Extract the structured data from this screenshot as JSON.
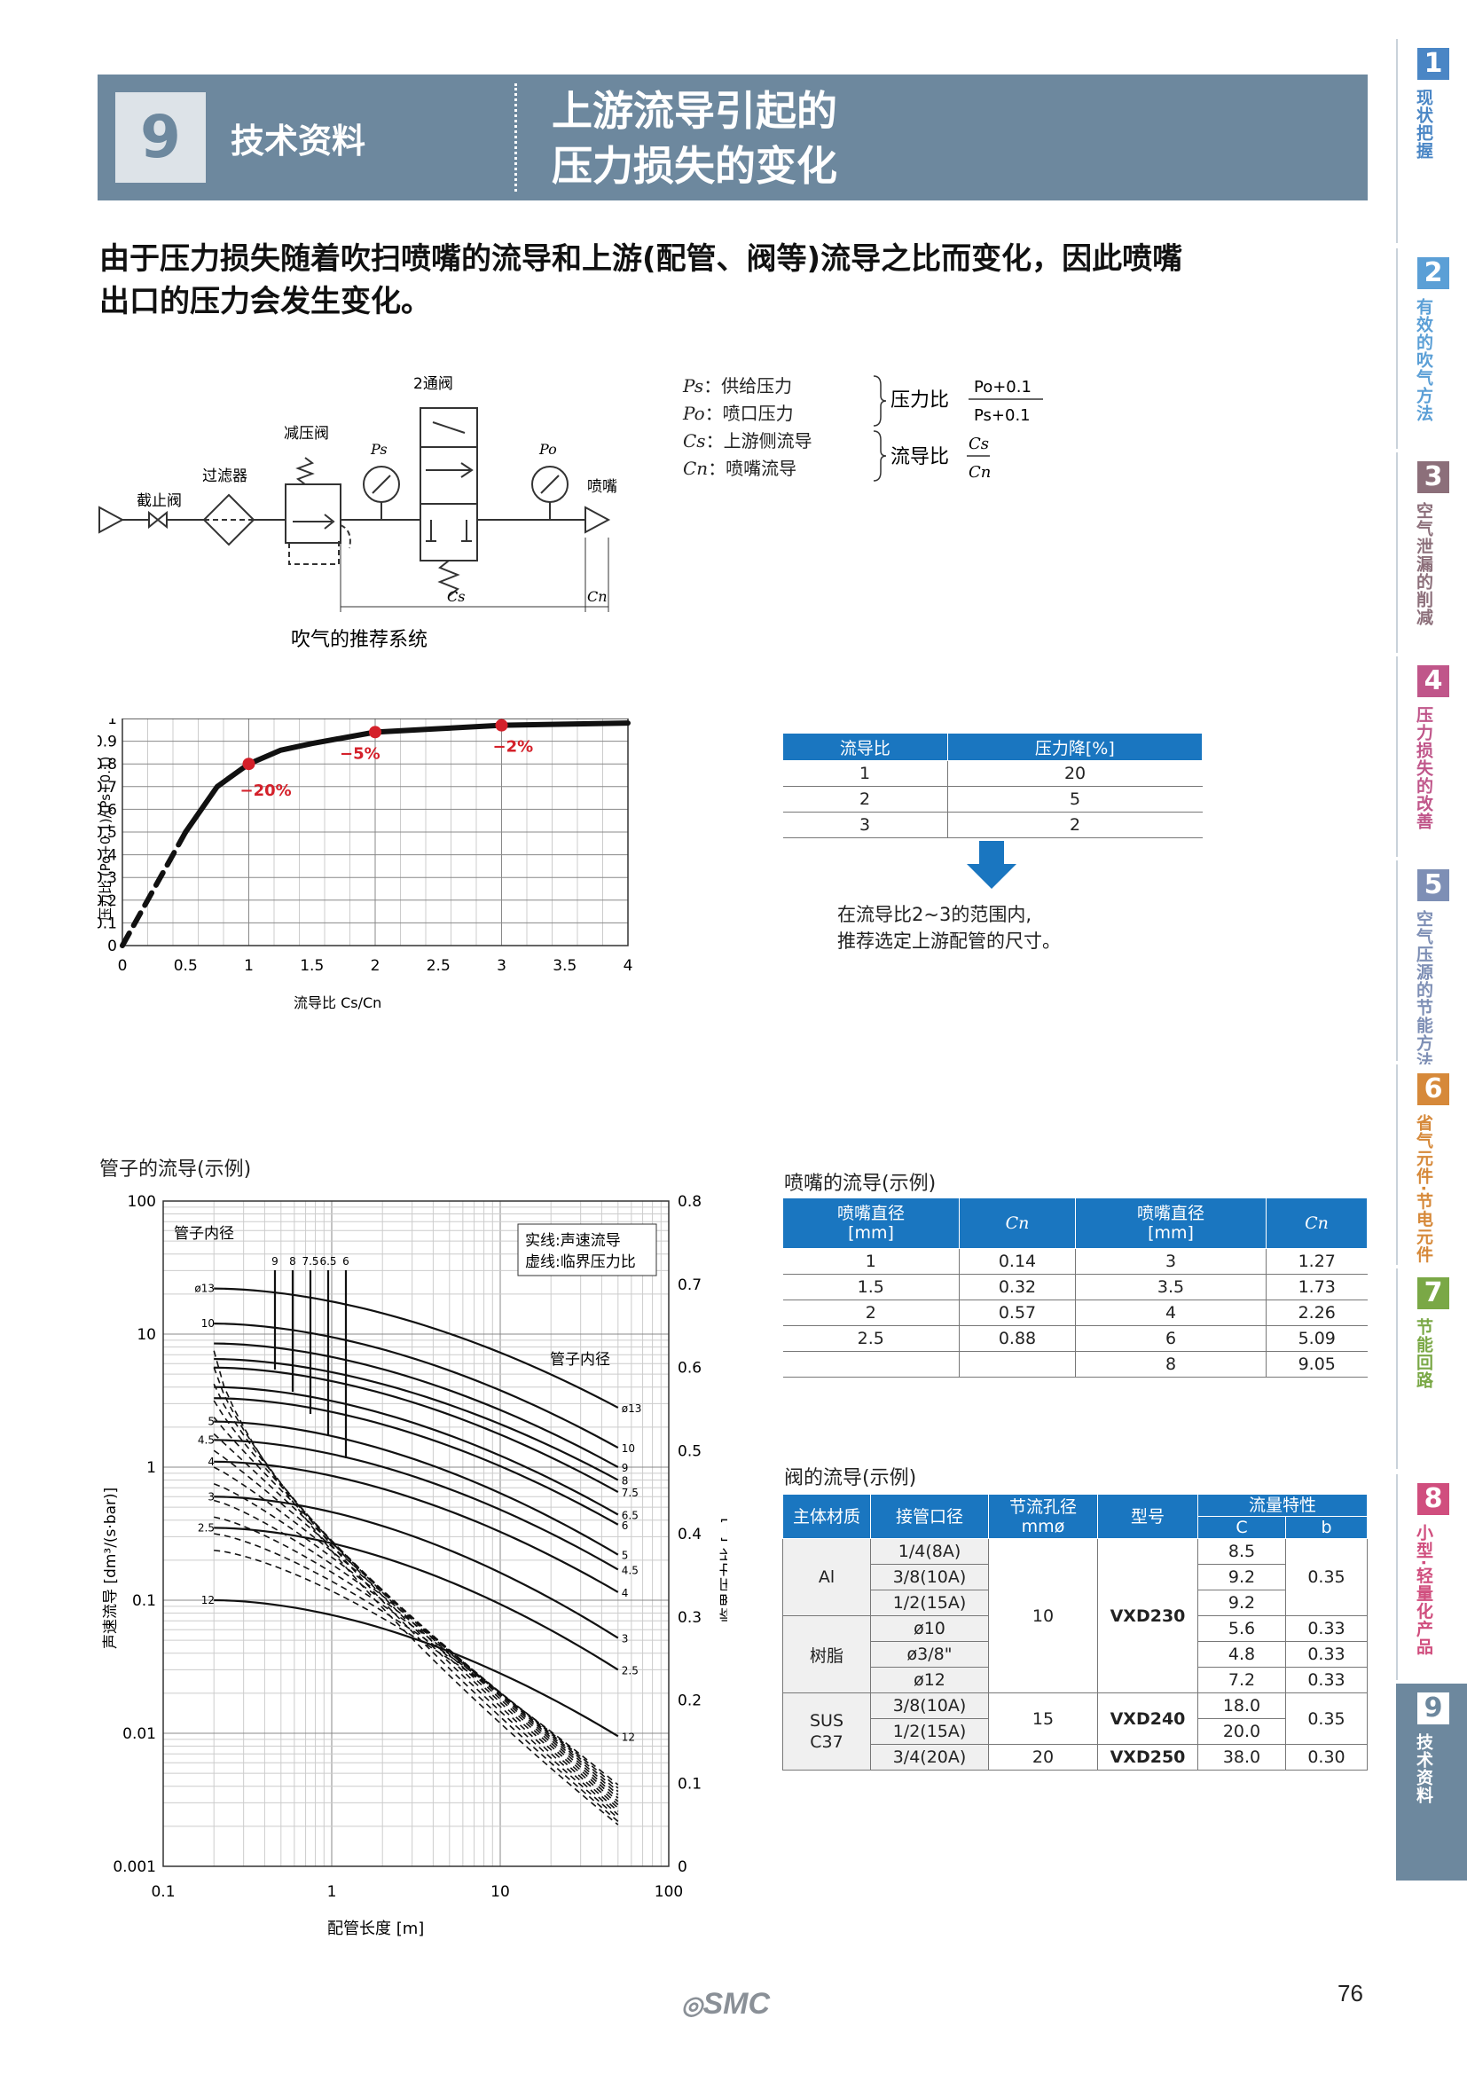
{
  "header": {
    "num": "9",
    "section": "技术资料",
    "title_line1": "上游流导引起的",
    "title_line2": "压力损失的变化"
  },
  "lead": {
    "line1": "由于压力损失随着吹扫喷嘴的流导和上游(配管、阀等)流导之比而变化，因此喷嘴",
    "line2": "出口的压力会发生变化。"
  },
  "tabs": [
    {
      "num": "1",
      "label": "现状把握",
      "color": "#4a86c5"
    },
    {
      "num": "2",
      "label": "有效的吹气方法",
      "color": "#5b9fd6"
    },
    {
      "num": "3",
      "label": "空气泄漏的削减",
      "color": "#8c6f7a"
    },
    {
      "num": "4",
      "label": "压力损失的改善",
      "color": "#c0568a"
    },
    {
      "num": "5",
      "label": "空气压源的节能方法",
      "color": "#7e8fb5"
    },
    {
      "num": "6",
      "label": "省气元件·节电元件",
      "color": "#d6893a"
    },
    {
      "num": "7",
      "label": "节能回路",
      "color": "#7aa846"
    },
    {
      "num": "8",
      "label": "小型·轻量化产品",
      "color": "#d04e7e"
    },
    {
      "num": "9",
      "label": "技术资料",
      "color": "#6d889e"
    }
  ],
  "diagram": {
    "labels": {
      "valve": "2通阀",
      "regulator": "减压阀",
      "filter": "过滤器",
      "stop_valve": "截止阀",
      "nozzle": "喷嘴",
      "ps": "Ps",
      "po": "Po",
      "cs": "Cs",
      "cn": "Cn",
      "caption": "吹气的推荐系统"
    },
    "legend": [
      {
        "sym": "Ps",
        "text": "：供给压力"
      },
      {
        "sym": "Po",
        "text": "：喷口压力"
      },
      {
        "sym": "Cs",
        "text": "：上游侧流导"
      },
      {
        "sym": "Cn",
        "text": "：喷嘴流导"
      }
    ],
    "pressure_ratio": {
      "label": "压力比",
      "num": "Po+0.1",
      "den": "Ps+0.1"
    },
    "conductance_ratio": {
      "label": "流导比",
      "num": "Cs",
      "den": "Cn"
    }
  },
  "chart_data": [
    {
      "type": "line",
      "title": "",
      "xlabel": "流导比 Cs/Cn",
      "ylabel": "压力比 (Po+0.1)/(Ps+0.1)",
      "xlim": [
        0,
        4
      ],
      "ylim": [
        0,
        1
      ],
      "xticks": [
        "0",
        "0.5",
        "1",
        "1.5",
        "2",
        "2.5",
        "3",
        "3.5",
        "4"
      ],
      "yticks": [
        "0",
        "0.1",
        "0.2",
        "0.3",
        "0.4",
        "0.5",
        "0.6",
        "0.7",
        "0.8",
        "0.9",
        "1"
      ],
      "grid": true,
      "series": [
        {
          "style": "dashed",
          "x": [
            0,
            0.5
          ],
          "y": [
            0,
            0.5
          ]
        },
        {
          "style": "solid",
          "x": [
            0.5,
            0.75,
            1,
            1.25,
            1.5,
            2,
            2.5,
            3,
            3.5,
            4
          ],
          "y": [
            0.5,
            0.7,
            0.8,
            0.86,
            0.89,
            0.94,
            0.955,
            0.97,
            0.975,
            0.98
          ]
        }
      ],
      "points": [
        {
          "x": 1,
          "y": 0.8,
          "label": "−20%"
        },
        {
          "x": 2,
          "y": 0.94,
          "label": "−5%"
        },
        {
          "x": 3,
          "y": 0.97,
          "label": "−2%"
        }
      ]
    },
    {
      "type": "line",
      "title": "管子的流导(示例)",
      "xlabel": "配管长度 [m]",
      "ylabel": "声速流导 [dm³/(s·bar)]",
      "ylabel_right": "临界压力比 [−]",
      "xscale": "log",
      "yscale": "log",
      "xlim": [
        0.1,
        100
      ],
      "ylim": [
        0.001,
        100
      ],
      "xticks": [
        "0.1",
        "1",
        "10",
        "100"
      ],
      "yticks": [
        "0.001",
        "0.01",
        "0.1",
        "1",
        "10",
        "100"
      ],
      "yticks_right": [
        "0",
        "0.1",
        "0.2",
        "0.3",
        "0.4",
        "0.5",
        "0.6",
        "0.7",
        "0.8"
      ],
      "legend": [
        "实线:声速流导",
        "虚线:临界压力比"
      ],
      "annotations": [
        "管子内径",
        "管子内径"
      ],
      "top_labels": [
        "9",
        "8",
        "7.5",
        "6.5",
        "6"
      ],
      "series": [
        {
          "name": "ø13",
          "c": [
            22,
            2.8
          ]
        },
        {
          "name": "10",
          "c": [
            12,
            1.4
          ]
        },
        {
          "name": "9",
          "c": [
            8.5,
            1.0
          ]
        },
        {
          "name": "8",
          "c": [
            6.5,
            0.8
          ]
        },
        {
          "name": "7.5",
          "c": [
            5.6,
            0.65
          ]
        },
        {
          "name": "6.5",
          "c": [
            4.0,
            0.44
          ]
        },
        {
          "name": "6",
          "c": [
            3.3,
            0.37
          ]
        },
        {
          "name": "5",
          "c": [
            2.2,
            0.22
          ]
        },
        {
          "name": "4.5",
          "c": [
            1.6,
            0.17
          ]
        },
        {
          "name": "4",
          "c": [
            1.1,
            0.115
          ]
        },
        {
          "name": "3",
          "c": [
            0.6,
            0.052
          ]
        },
        {
          "name": "2.5",
          "c": [
            0.35,
            0.03
          ]
        },
        {
          "name": "12",
          "c": [
            0.1,
            0.0095
          ]
        }
      ],
      "left_labels": [
        "ø13",
        "10",
        "5",
        "4.5",
        "4",
        "3",
        "2.5",
        "12"
      ]
    }
  ],
  "table_loss": {
    "headers": [
      "流导比",
      "压力降[%]"
    ],
    "rows": [
      [
        "1",
        "20"
      ],
      [
        "2",
        "5"
      ],
      [
        "3",
        "2"
      ]
    ]
  },
  "recommend": {
    "line1": "在流导比2~3的范围内,",
    "line2": "推荐选定上游配管的尺寸。"
  },
  "nozzle_table": {
    "caption": "喷嘴的流导(示例)",
    "headers": [
      "喷嘴直径\n[mm]",
      "Cn",
      "喷嘴直径\n[mm]",
      "Cn"
    ],
    "rows": [
      [
        "1",
        "0.14",
        "3",
        "1.27"
      ],
      [
        "1.5",
        "0.32",
        "3.5",
        "1.73"
      ],
      [
        "2",
        "0.57",
        "4",
        "2.26"
      ],
      [
        "2.5",
        "0.88",
        "6",
        "5.09"
      ],
      [
        "",
        "",
        "8",
        "9.05"
      ]
    ]
  },
  "valve_table": {
    "caption": "阀的流导(示例)",
    "headers": {
      "material": "主体材质",
      "port": "接管口径",
      "orifice": "节流孔径\nmmø",
      "model": "型号",
      "flow": "流量特性",
      "c": "C",
      "b": "b"
    },
    "groups": [
      {
        "material": "Al",
        "rows": [
          [
            "1/4(8A)",
            "8.5"
          ],
          [
            "3/8(10A)",
            "9.2"
          ],
          [
            "1/2(15A)",
            "9.2"
          ]
        ],
        "b": "0.35"
      },
      {
        "material": "树脂",
        "rows": [
          [
            "ø10",
            "5.6",
            "0.33"
          ],
          [
            "ø3/8\"",
            "4.8",
            "0.33"
          ],
          [
            "ø12",
            "7.2",
            "0.33"
          ]
        ]
      },
      {
        "material": "SUS\nC37",
        "rows": [
          [
            "3/8(10A)",
            "18.0"
          ],
          [
            "1/2(15A)",
            "20.0"
          ],
          [
            "3/4(20A)",
            "38.0",
            "0.30"
          ]
        ],
        "b": "0.35"
      }
    ],
    "orifice_values": [
      "10",
      "15",
      "20"
    ],
    "models": [
      "VXD230",
      "VXD240",
      "VXD250"
    ]
  },
  "footer": {
    "logo": "SMC",
    "page": "76"
  }
}
